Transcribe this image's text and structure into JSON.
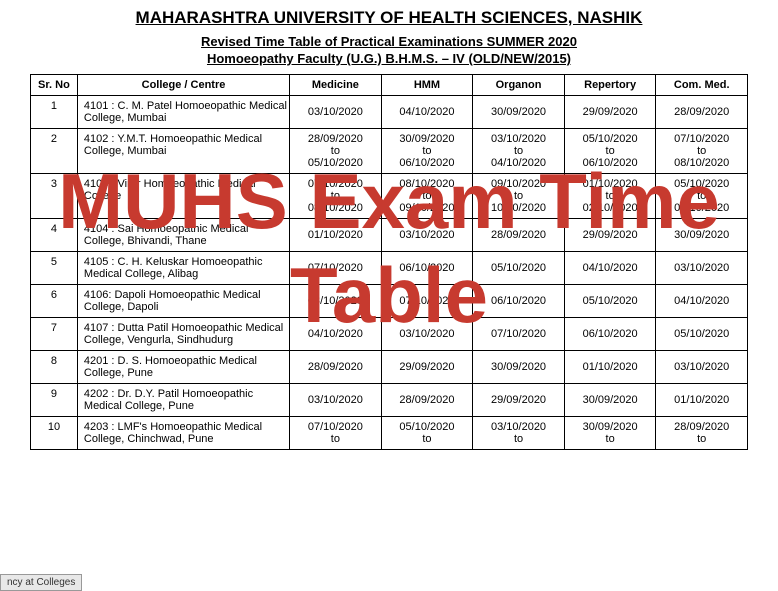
{
  "header": {
    "university": "MAHARASHTRA UNIVERSITY OF HEALTH SCIENCES, NASHIK",
    "subtitle1": "Revised Time Table of Practical Examinations SUMMER 2020",
    "subtitle2": "Homoeopathy Faculty (U.G.) B.H.M.S. – IV (OLD/NEW/2015)"
  },
  "table": {
    "columns": [
      "Sr. No",
      "College / Centre",
      "Medicine",
      "HMM",
      "Organon",
      "Repertory",
      "Com. Med."
    ],
    "rows": [
      {
        "sr": "1",
        "college": "4101 : C. M. Patel Homoeopathic Medical College, Mumbai",
        "c1": "03/10/2020",
        "c2": "04/10/2020",
        "c3": "30/09/2020",
        "c4": "29/09/2020",
        "c5": "28/09/2020"
      },
      {
        "sr": "2",
        "college": "4102 : Y.M.T. Homoeopathic Medical College, Mumbai",
        "c1": "28/09/2020\nto\n05/10/2020",
        "c2": "30/09/2020\nto\n06/10/2020",
        "c3": "03/10/2020\nto\n04/10/2020",
        "c4": "05/10/2020\nto\n06/10/2020",
        "c5": "07/10/2020\nto\n08/10/2020"
      },
      {
        "sr": "3",
        "college": "4103 : Virar Homoeopathic Medical College",
        "c1": "07/10/2020\nto\n08/10/2020",
        "c2": "08/10/2020\nto\n09/10/2020",
        "c3": "09/10/2020\nto\n10/10/2020",
        "c4": "01/10/2020\nto\n02/10/2020",
        "c5": "05/10/2020\nto\n06/10/2020"
      },
      {
        "sr": "4",
        "college": "4104 : Sai Homoeopathic Medical College, Bhivandi, Thane",
        "c1": "01/10/2020",
        "c2": "03/10/2020",
        "c3": "28/09/2020",
        "c4": "29/09/2020",
        "c5": "30/09/2020"
      },
      {
        "sr": "5",
        "college": "4105 : C. H. Keluskar Homoeopathic Medical College, Alibag",
        "c1": "07/10/2020",
        "c2": "06/10/2020",
        "c3": "05/10/2020",
        "c4": "04/10/2020",
        "c5": "03/10/2020"
      },
      {
        "sr": "6",
        "college": "4106: Dapoli Homoeopathic Medical College, Dapoli",
        "c1": "03/10/2020",
        "c2": "07/10/2020",
        "c3": "06/10/2020",
        "c4": "05/10/2020",
        "c5": "04/10/2020"
      },
      {
        "sr": "7",
        "college": "4107 : Dutta Patil Homoeopathic Medical College, Vengurla, Sindhudurg",
        "c1": "04/10/2020",
        "c2": "03/10/2020",
        "c3": "07/10/2020",
        "c4": "06/10/2020",
        "c5": "05/10/2020"
      },
      {
        "sr": "8",
        "college": "4201 : D. S. Homoeopathic Medical College, Pune",
        "c1": "28/09/2020",
        "c2": "29/09/2020",
        "c3": "30/09/2020",
        "c4": "01/10/2020",
        "c5": "03/10/2020"
      },
      {
        "sr": "9",
        "college": "4202 : Dr. D.Y. Patil Homoeopathic Medical College,  Pune",
        "c1": "03/10/2020",
        "c2": "28/09/2020",
        "c3": "29/09/2020",
        "c4": "30/09/2020",
        "c5": "01/10/2020"
      },
      {
        "sr": "10",
        "college": "4203 : LMF's Homoeopathic Medical College, Chinchwad, Pune",
        "c1": "07/10/2020\nto",
        "c2": "05/10/2020\nto",
        "c3": "03/10/2020\nto",
        "c4": "30/09/2020\nto",
        "c5": "28/09/2020\nto"
      }
    ]
  },
  "overlay": {
    "line1": "MUHS Exam Time",
    "line2": "Table",
    "color": "#c73a2f",
    "fontsize": 78
  },
  "bottom_tab": "ncy at Colleges"
}
